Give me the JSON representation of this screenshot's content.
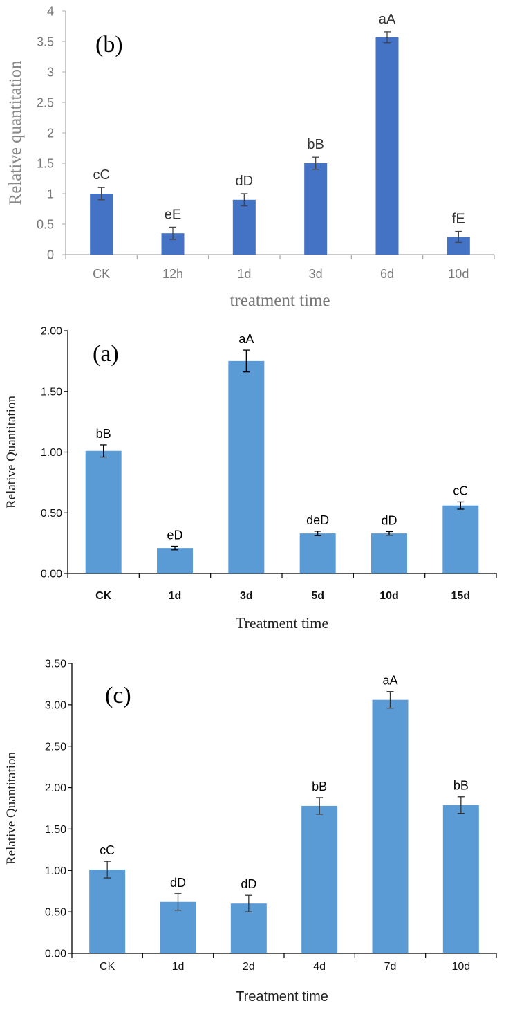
{
  "chart_data": [
    {
      "type": "bar",
      "panel_label": "(b)",
      "xlabel": "treatment time",
      "ylabel": "Relative quantitation",
      "categories": [
        "CK",
        "12h",
        "1d",
        "3d",
        "6d",
        "10d"
      ],
      "values": [
        1.0,
        0.35,
        0.9,
        1.5,
        3.57,
        0.29
      ],
      "errors": [
        0.1,
        0.1,
        0.1,
        0.1,
        0.09,
        0.09
      ],
      "significance": [
        "cC",
        "eE",
        "dD",
        "bB",
        "aA",
        "fE"
      ],
      "ylim": [
        0,
        4
      ],
      "yticks": [
        "0",
        "0.5",
        "1",
        "1.5",
        "2",
        "2.5",
        "3",
        "3.5",
        "4"
      ],
      "bar_color": "#4472c4",
      "grid": false
    },
    {
      "type": "bar",
      "panel_label": "(a)",
      "xlabel": "Treatment time",
      "ylabel": "Relative Quantitation",
      "categories": [
        "CK",
        "1d",
        "3d",
        "5d",
        "10d",
        "15d"
      ],
      "values": [
        1.01,
        0.21,
        1.75,
        0.33,
        0.33,
        0.56
      ],
      "errors": [
        0.05,
        0.015,
        0.09,
        0.018,
        0.015,
        0.03
      ],
      "significance": [
        "bB",
        "eD",
        "aA",
        "deD",
        "dD",
        "cC"
      ],
      "ylim": [
        0,
        2
      ],
      "yticks": [
        "0.00",
        "0.50",
        "1.00",
        "1.50",
        "2.00"
      ],
      "bar_color": "#5b9bd5",
      "grid": false
    },
    {
      "type": "bar",
      "panel_label": "(c)",
      "xlabel": "Treatment time",
      "ylabel": "Relative Quantitation",
      "categories": [
        "CK",
        "1d",
        "2d",
        "4d",
        "7d",
        "10d"
      ],
      "values": [
        1.01,
        0.62,
        0.6,
        1.78,
        3.06,
        1.79
      ],
      "errors": [
        0.1,
        0.1,
        0.1,
        0.1,
        0.1,
        0.1
      ],
      "significance": [
        "cC",
        "dD",
        "dD",
        "bB",
        "aA",
        "bB"
      ],
      "ylim": [
        0,
        3.5
      ],
      "yticks": [
        "0.00",
        "0.50",
        "1.00",
        "1.50",
        "2.00",
        "2.50",
        "3.00",
        "3.50"
      ],
      "bar_color": "#5b9bd5",
      "grid": false
    }
  ]
}
